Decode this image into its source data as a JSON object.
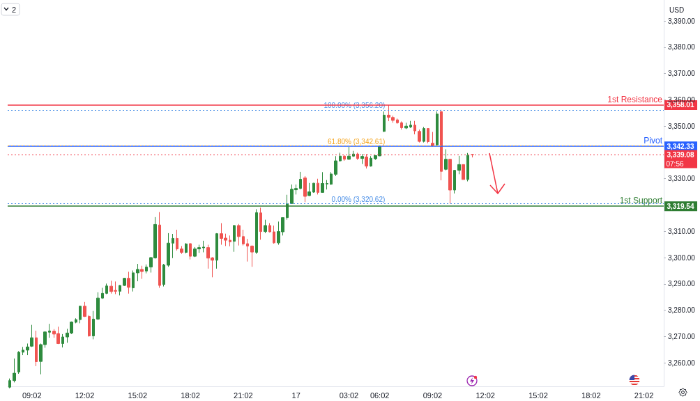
{
  "chart_data": {
    "type": "candlestick",
    "categories": [
      null,
      null,
      null,
      null,
      null,
      "09:02",
      null,
      null,
      null,
      null,
      null,
      null,
      null,
      null,
      null,
      null,
      null,
      "12:02",
      null,
      null,
      null,
      null,
      null,
      null,
      null,
      null,
      null,
      null,
      null,
      "15:02",
      null,
      null,
      null,
      null,
      null,
      null,
      null,
      null,
      null,
      null,
      null,
      "18:02",
      null,
      null,
      null,
      null,
      null,
      null,
      null,
      null,
      null,
      null,
      null,
      "21:02",
      null,
      null,
      null,
      null,
      null,
      null,
      null,
      null,
      null,
      null,
      null,
      "17",
      null,
      null,
      null,
      null,
      null,
      null,
      null,
      null,
      null,
      null,
      null,
      "03:02",
      null,
      null,
      null,
      null,
      null,
      null,
      "06:02",
      null,
      null,
      null,
      null,
      null,
      null,
      null,
      null,
      null,
      null,
      null,
      "09:02",
      null,
      null,
      null,
      null,
      null,
      null,
      null,
      null,
      null,
      null,
      null,
      "12:02",
      null,
      null,
      null,
      null,
      null,
      null,
      null,
      null,
      null,
      null,
      null,
      "15:02",
      null,
      null,
      null,
      null,
      null,
      null,
      null,
      null,
      null,
      null,
      null,
      "18:02",
      null,
      null,
      null,
      null,
      null,
      null,
      null,
      null,
      null,
      null,
      null,
      "21:02",
      null,
      null,
      null,
      null
    ],
    "ohlc": [
      [
        3250.7,
        3254.0,
        3250.3,
        3253.2
      ],
      [
        3253.2,
        3261.6,
        3252.5,
        3256.0
      ],
      [
        3256.5,
        3264.4,
        3255.8,
        3264.0
      ],
      [
        3264.0,
        3266.0,
        3262.9,
        3264.8
      ],
      [
        3264.8,
        3267.3,
        3262.9,
        3266.0
      ],
      [
        3266.3,
        3274.4,
        3266.0,
        3269.5
      ],
      [
        3269.5,
        3272.2,
        3258.7,
        3260.4
      ],
      [
        3260.5,
        3267.3,
        3255.6,
        3266.9
      ],
      [
        3266.9,
        3271.9,
        3265.7,
        3271.7
      ],
      [
        3271.6,
        3274.8,
        3269.5,
        3272.1
      ],
      [
        3272.0,
        3272.8,
        3269.5,
        3270.9
      ],
      [
        3271.1,
        3273.7,
        3267.1,
        3267.3
      ],
      [
        3267.3,
        3270.9,
        3265.8,
        3269.8
      ],
      [
        3269.8,
        3272.9,
        3267.6,
        3271.3
      ],
      [
        3271.3,
        3275.7,
        3270.9,
        3275.5
      ],
      [
        3275.4,
        3276.9,
        3275.0,
        3276.4
      ],
      [
        3276.4,
        3281.7,
        3275.0,
        3281.5
      ],
      [
        3281.5,
        3283.1,
        3277.4,
        3277.6
      ],
      [
        3277.6,
        3278.1,
        3269.9,
        3270.2
      ],
      [
        3270.2,
        3279.7,
        3268.9,
        3276.6
      ],
      [
        3276.6,
        3286.8,
        3276.3,
        3284.6
      ],
      [
        3284.6,
        3288.5,
        3284.3,
        3286.4
      ],
      [
        3286.4,
        3290.1,
        3286.1,
        3289.2
      ],
      [
        3289.1,
        3291.2,
        3286.3,
        3287.1
      ],
      [
        3287.5,
        3290.9,
        3286.1,
        3287.2
      ],
      [
        3287.2,
        3289.5,
        3285.6,
        3289.4
      ],
      [
        3289.4,
        3292.3,
        3289.2,
        3292.1
      ],
      [
        3292.1,
        3294.6,
        3286.3,
        3288.7
      ],
      [
        3288.5,
        3295.1,
        3287.1,
        3294.2
      ],
      [
        3294.2,
        3297.6,
        3291.0,
        3295.5
      ],
      [
        3295.5,
        3296.9,
        3291.9,
        3294.7
      ],
      [
        3294.9,
        3297.4,
        3294.0,
        3296.4
      ],
      [
        3296.4,
        3300.2,
        3294.3,
        3300.0
      ],
      [
        3299.9,
        3315.4,
        3299.6,
        3312.6
      ],
      [
        3312.4,
        3317.3,
        3288.5,
        3289.4
      ],
      [
        3289.8,
        3297.6,
        3289.0,
        3297.2
      ],
      [
        3297.1,
        3309.3,
        3296.5,
        3305.5
      ],
      [
        3305.5,
        3309.0,
        3299.8,
        3307.3
      ],
      [
        3307.3,
        3310.6,
        3302.7,
        3303.3
      ],
      [
        3303.3,
        3304.4,
        3301.4,
        3302.0
      ],
      [
        3302.0,
        3305.5,
        3301.6,
        3305.2
      ],
      [
        3305.3,
        3305.5,
        3299.3,
        3300.5
      ],
      [
        3300.5,
        3304.0,
        3300.2,
        3303.3
      ],
      [
        3303.3,
        3304.9,
        3301.8,
        3303.8
      ],
      [
        3303.7,
        3306.4,
        3302.0,
        3304.0
      ],
      [
        3303.8,
        3304.9,
        3295.8,
        3299.8
      ],
      [
        3299.9,
        3300.2,
        3292.5,
        3299.0
      ],
      [
        3299.0,
        3309.3,
        3295.8,
        3309.1
      ],
      [
        3309.1,
        3313.1,
        3304.9,
        3307.3
      ],
      [
        3307.4,
        3309.1,
        3304.4,
        3306.6
      ],
      [
        3306.6,
        3308.4,
        3304.3,
        3306.0
      ],
      [
        3306.2,
        3312.4,
        3302.2,
        3312.2
      ],
      [
        3312.2,
        3312.8,
        3304.6,
        3308.0
      ],
      [
        3308.0,
        3310.6,
        3304.6,
        3305.2
      ],
      [
        3305.3,
        3307.1,
        3298.5,
        3304.4
      ],
      [
        3304.4,
        3304.6,
        3296.5,
        3302.1
      ],
      [
        3302.0,
        3318.4,
        3301.4,
        3317.1
      ],
      [
        3317.0,
        3319.0,
        3306.8,
        3309.9
      ],
      [
        3309.9,
        3314.4,
        3309.3,
        3312.2
      ],
      [
        3312.2,
        3313.1,
        3309.6,
        3309.8
      ],
      [
        3309.8,
        3312.2,
        3305.3,
        3305.6
      ],
      [
        3305.6,
        3313.7,
        3304.9,
        3309.9
      ],
      [
        3309.8,
        3315.3,
        3308.4,
        3315.2
      ],
      [
        3315.2,
        3323.9,
        3314.4,
        3320.5
      ],
      [
        3320.6,
        3327.8,
        3320.4,
        3326.0
      ],
      [
        3325.8,
        3327.8,
        3324.0,
        3326.3
      ],
      [
        3326.3,
        3332.6,
        3326.0,
        3329.8
      ],
      [
        3330.3,
        3331.0,
        3321.1,
        3323.3
      ],
      [
        3323.6,
        3328.4,
        3323.4,
        3325.0
      ],
      [
        3324.9,
        3328.4,
        3324.7,
        3328.3
      ],
      [
        3328.3,
        3330.0,
        3324.0,
        3324.8
      ],
      [
        3324.8,
        3332.5,
        3324.7,
        3328.2
      ],
      [
        3328.0,
        3329.5,
        3325.9,
        3328.2
      ],
      [
        3327.9,
        3332.5,
        3327.7,
        3331.8
      ],
      [
        3331.7,
        3338.6,
        3331.0,
        3336.8
      ],
      [
        3336.8,
        3339.9,
        3336.5,
        3338.6
      ],
      [
        3338.6,
        3339.0,
        3336.8,
        3337.4
      ],
      [
        3337.4,
        3342.1,
        3337.2,
        3338.6
      ],
      [
        3338.6,
        3340.6,
        3338.3,
        3339.4
      ],
      [
        3339.4,
        3339.9,
        3337.2,
        3337.7
      ],
      [
        3337.7,
        3339.4,
        3335.6,
        3338.5
      ],
      [
        3338.3,
        3339.4,
        3333.9,
        3334.8
      ],
      [
        3334.8,
        3338.6,
        3334.6,
        3337.8
      ],
      [
        3337.6,
        3339.0,
        3337.2,
        3338.8
      ],
      [
        3338.7,
        3342.5,
        3338.6,
        3342.4
      ],
      [
        3348.0,
        3355.6,
        3347.8,
        3354.2
      ],
      [
        3354.2,
        3358.0,
        3351.9,
        3353.4
      ],
      [
        3353.3,
        3354.0,
        3351.3,
        3352.2
      ],
      [
        3352.4,
        3352.9,
        3350.9,
        3351.3
      ],
      [
        3351.3,
        3351.8,
        3348.7,
        3349.4
      ],
      [
        3349.3,
        3351.3,
        3348.9,
        3350.0
      ],
      [
        3349.7,
        3352.0,
        3349.3,
        3350.4
      ],
      [
        3350.4,
        3352.0,
        3346.9,
        3348.2
      ],
      [
        3348.0,
        3348.7,
        3343.8,
        3344.2
      ],
      [
        3344.2,
        3349.7,
        3343.8,
        3349.1
      ],
      [
        3349.1,
        3349.2,
        3343.5,
        3344.1
      ],
      [
        3343.5,
        3347.8,
        3342.3,
        3342.5
      ],
      [
        3342.9,
        3355.6,
        3342.5,
        3354.6
      ],
      [
        3355.5,
        3356.2,
        3329.4,
        3332.8
      ],
      [
        3333.6,
        3341.2,
        3333.2,
        3337.4
      ],
      [
        3337.4,
        3337.5,
        3320.6,
        3325.7
      ],
      [
        3325.7,
        3333.3,
        3324.4,
        3333.2
      ],
      [
        3333.2,
        3338.7,
        3331.7,
        3335.4
      ],
      [
        3335.4,
        3335.5,
        3329.7,
        3329.7
      ],
      [
        3329.7,
        3339.8,
        3329.0,
        3338.9
      ],
      [
        3339.2,
        3339.4,
        3338.1,
        3339.08
      ],
      null,
      null,
      null,
      null,
      null,
      null,
      null,
      null,
      null,
      null,
      null,
      null,
      null,
      null,
      null,
      null,
      null,
      null,
      null,
      null,
      null,
      null,
      null,
      null,
      null,
      null,
      null,
      null,
      null,
      null,
      null,
      null,
      null,
      null,
      null,
      null,
      null,
      null,
      null,
      null,
      null,
      null,
      null
    ],
    "colors": [
      "#2e8b3e",
      "#2e8b3e",
      "#2e8b3e",
      "#2e8b3e",
      "#2e8b3e",
      "#2e8b3e",
      "#f05350",
      "#2e8b3e",
      "#2e8b3e",
      "#2e8b3e",
      "#f05350",
      "#f05350",
      "#2e8b3e",
      "#2e8b3e",
      "#2e8b3e",
      "#2e8b3e",
      "#2e8b3e",
      "#f05350",
      "#f05350",
      "#2e8b3e",
      "#2e8b3e",
      "#2e8b3e",
      "#2e8b3e",
      "#f05350",
      "#f05350",
      "#2e8b3e",
      "#2e8b3e",
      "#f05350",
      "#2e8b3e",
      "#2e8b3e",
      "#f05350",
      "#2e8b3e",
      "#2e8b3e",
      "#2e8b3e",
      "#f05350",
      "#2e8b3e",
      "#2e8b3e",
      "#2e8b3e",
      "#f05350",
      "#f05350",
      "#2e8b3e",
      "#f05350",
      "#2e8b3e",
      "#2e8b3e",
      "#2e8b3e",
      "#f05350",
      "#f05350",
      "#2e8b3e",
      "#f05350",
      "#f05350",
      "#f05350",
      "#2e8b3e",
      "#f05350",
      "#f05350",
      "#f05350",
      "#f05350",
      "#2e8b3e",
      "#f05350",
      "#2e8b3e",
      "#f05350",
      "#f05350",
      "#2e8b3e",
      "#2e8b3e",
      "#2e8b3e",
      "#2e8b3e",
      "#2e8b3e",
      "#2e8b3e",
      "#f05350",
      "#2e8b3e",
      "#2e8b3e",
      "#f05350",
      "#2e8b3e",
      "#2e8b3e",
      "#2e8b3e",
      "#2e8b3e",
      "#2e8b3e",
      "#f05350",
      "#2e8b3e",
      "#2e8b3e",
      "#f05350",
      "#2e8b3e",
      "#f05350",
      "#2e8b3e",
      "#2e8b3e",
      "#2e8b3e",
      "#2e8b3e",
      "#f05350",
      "#f05350",
      "#f05350",
      "#f05350",
      "#2e8b3e",
      "#2e8b3e",
      "#f05350",
      "#f05350",
      "#2e8b3e",
      "#f05350",
      "#f05350",
      "#2e8b3e",
      "#f05350",
      "#2e8b3e",
      "#f05350",
      "#2e8b3e",
      "#2e8b3e",
      "#f05350",
      "#2e8b3e",
      "#f05350",
      null,
      null,
      null,
      null,
      null,
      null,
      null,
      null,
      null,
      null,
      null,
      null,
      null,
      null,
      null,
      null,
      null,
      null,
      null,
      null,
      null,
      null,
      null,
      null,
      null,
      null,
      null,
      null,
      null,
      null,
      null,
      null,
      null,
      null,
      null,
      null,
      null,
      null,
      null,
      null,
      null,
      null,
      null
    ],
    "ylim": [
      3251,
      3398
    ],
    "yticks": [
      {
        "value": 3260,
        "label": "3,260.00"
      },
      {
        "value": 3270,
        "label": "3,270.00"
      },
      {
        "value": 3280,
        "label": "3,280.00"
      },
      {
        "value": 3290,
        "label": "3,290.00"
      },
      {
        "value": 3300,
        "label": "3,300.00"
      },
      {
        "value": 3310,
        "label": "3,310.00"
      },
      {
        "value": 3330,
        "label": "3,330.00"
      },
      {
        "value": 3350,
        "label": "3,350.00"
      },
      {
        "value": 3360,
        "label": "3,360.00"
      },
      {
        "value": 3370,
        "label": "3,370.00"
      },
      {
        "value": 3380,
        "label": "3,380.00"
      },
      {
        "value": 3390,
        "label": "3,390.00"
      }
    ],
    "grid": false,
    "ref_lines": [
      {
        "axis": "y",
        "value": 3358.01,
        "label": "1st Resistance",
        "color": "#f23645",
        "line_style": "solid"
      },
      {
        "axis": "y",
        "value": 3342.33,
        "label": "Pivot",
        "color": "#2962ff",
        "line_style": "solid"
      },
      {
        "axis": "y",
        "value": 3319.54,
        "label": "1st Support",
        "color": "#2e7d32",
        "line_style": "solid"
      },
      {
        "axis": "y",
        "value": 3339.08,
        "color": "#f23645",
        "line_style": "dotted"
      },
      {
        "axis": "y",
        "value": 3356.2,
        "label": "100.00% (3,356.20)",
        "color": "#4a8fe7",
        "line_style": "dotted"
      },
      {
        "axis": "y",
        "value": 3342.61,
        "label": "61.80% (3,342.61)",
        "color": "#f5a623",
        "line_style": "dotted"
      },
      {
        "axis": "y",
        "value": 3320.62,
        "label": "0.00% (3,320.62)",
        "color": "#4a8fe7",
        "line_style": "dotted"
      }
    ],
    "annotations": [
      "USD",
      "2",
      "07:56",
      "3,358.01",
      "3,342.33",
      "3,319.54",
      "3,339.08"
    ]
  }
}
